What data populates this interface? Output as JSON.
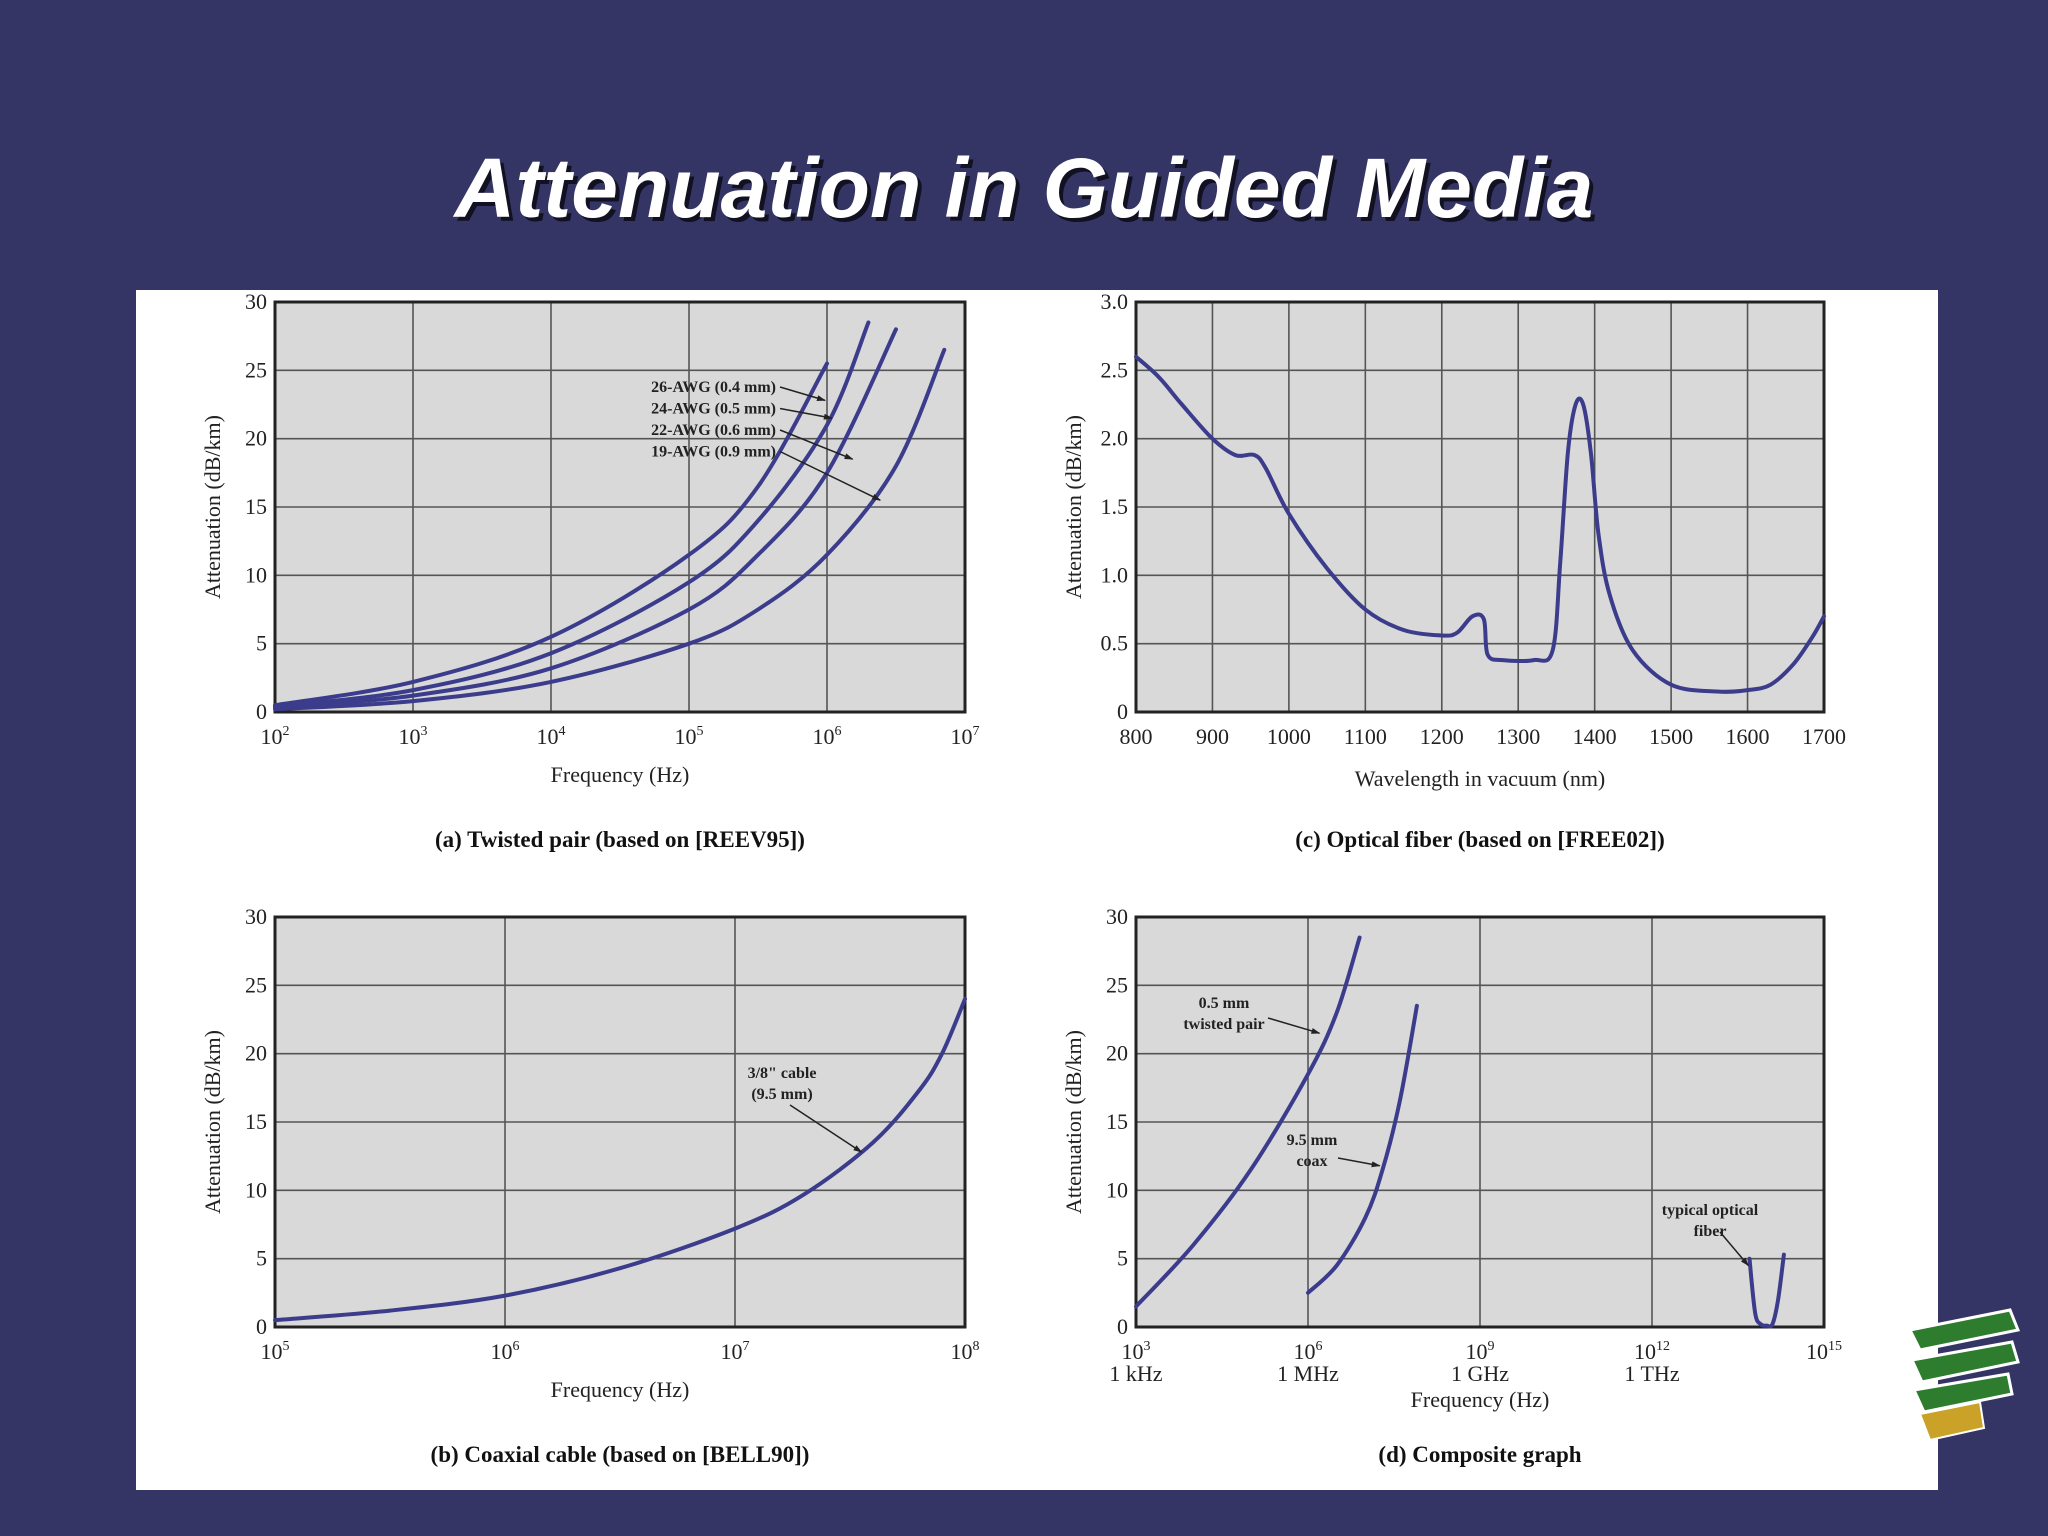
{
  "slide": {
    "title": "Attenuation in Guided Media"
  },
  "colors": {
    "background": "#353565",
    "curve": "#3c3c8c",
    "plot_bg": "#d9d9d9",
    "grid": "#555555"
  },
  "chart_data": [
    {
      "id": "a",
      "type": "line",
      "caption": "(a) Twisted pair (based on [REEV95])",
      "xlabel": "Frequency (Hz)",
      "ylabel": "Attenuation (dB/km)",
      "xscale": "log",
      "xlim": [
        2,
        7
      ],
      "ylim": [
        0,
        30
      ],
      "xticks": [
        {
          "base": "10",
          "exp": "2"
        },
        {
          "base": "10",
          "exp": "3"
        },
        {
          "base": "10",
          "exp": "4"
        },
        {
          "base": "10",
          "exp": "5"
        },
        {
          "base": "10",
          "exp": "6"
        },
        {
          "base": "10",
          "exp": "7"
        }
      ],
      "yticks": [
        "0",
        "5",
        "10",
        "15",
        "20",
        "25",
        "30"
      ],
      "grid": true,
      "series": [
        {
          "name": "26-AWG (0.4 mm)",
          "x": [
            2,
            3,
            4,
            5,
            5.5,
            6
          ],
          "y": [
            0.5,
            2.2,
            5.5,
            11.5,
            16.5,
            25.5
          ]
        },
        {
          "name": "24-AWG (0.5 mm)",
          "x": [
            2,
            3,
            4,
            5,
            5.5,
            6,
            6.3
          ],
          "y": [
            0.4,
            1.6,
            4.3,
            9.5,
            14,
            21,
            28.5
          ]
        },
        {
          "name": "22-AWG (0.6 mm)",
          "x": [
            2,
            3,
            4,
            5,
            5.5,
            6,
            6.5
          ],
          "y": [
            0.3,
            1.2,
            3.2,
            7.5,
            11.5,
            17.5,
            28
          ]
        },
        {
          "name": "19-AWG (0.9 mm)",
          "x": [
            2,
            3,
            4,
            5,
            5.5,
            6,
            6.5,
            6.85
          ],
          "y": [
            0.2,
            0.8,
            2.2,
            5.0,
            7.5,
            11.5,
            18,
            26.5
          ]
        }
      ]
    },
    {
      "id": "c",
      "type": "line",
      "caption": "(c) Optical fiber (based on [FREE02])",
      "xlabel": "Wavelength in vacuum (nm)",
      "ylabel": "Attenuation (dB/km)",
      "xscale": "linear",
      "xlim": [
        800,
        1700
      ],
      "ylim": [
        0,
        3.0
      ],
      "xticks": [
        "800",
        "900",
        "1000",
        "1100",
        "1200",
        "1300",
        "1400",
        "1500",
        "1600",
        "1700"
      ],
      "yticks": [
        "0",
        "0.5",
        "1.0",
        "1.5",
        "2.0",
        "2.5",
        "3.0"
      ],
      "grid": true,
      "series": [
        {
          "x": [
            800,
            830,
            860,
            900,
            930,
            955,
            970,
            1000,
            1050,
            1100,
            1150,
            1200,
            1220,
            1240,
            1255,
            1260,
            1280,
            1320,
            1345,
            1355,
            1365,
            1375,
            1385,
            1395,
            1405,
            1420,
            1450,
            1500,
            1560,
            1600,
            1630,
            1660,
            1685,
            1700
          ],
          "y": [
            2.6,
            2.45,
            2.25,
            2.0,
            1.88,
            1.88,
            1.78,
            1.45,
            1.05,
            0.75,
            0.6,
            0.56,
            0.58,
            0.7,
            0.68,
            0.42,
            0.38,
            0.38,
            0.45,
            1.1,
            1.9,
            2.25,
            2.25,
            1.9,
            1.3,
            0.85,
            0.45,
            0.2,
            0.15,
            0.16,
            0.2,
            0.35,
            0.55,
            0.7
          ]
        }
      ]
    },
    {
      "id": "b",
      "type": "line",
      "caption": "(b) Coaxial cable (based on [BELL90])",
      "xlabel": "Frequency (Hz)",
      "ylabel": "Attenuation (dB/km)",
      "xscale": "log",
      "xlim": [
        5,
        8
      ],
      "ylim": [
        0,
        30
      ],
      "xticks": [
        {
          "base": "10",
          "exp": "5"
        },
        {
          "base": "10",
          "exp": "6"
        },
        {
          "base": "10",
          "exp": "7"
        },
        {
          "base": "10",
          "exp": "8"
        }
      ],
      "yticks": [
        "0",
        "5",
        "10",
        "15",
        "20",
        "25",
        "30"
      ],
      "grid": true,
      "series": [
        {
          "name": "3/8\" cable (9.5 mm)",
          "x": [
            5,
            5.5,
            6,
            6.5,
            7,
            7.3,
            7.6,
            7.8,
            7.9,
            8.0
          ],
          "y": [
            0.5,
            1.2,
            2.3,
            4.3,
            7.2,
            9.7,
            13.5,
            17.3,
            20,
            24
          ]
        }
      ]
    },
    {
      "id": "d",
      "type": "line",
      "caption": "(d) Composite graph",
      "xlabel": "Frequency (Hz)",
      "ylabel": "Attenuation (dB/km)",
      "xscale": "log",
      "xlim": [
        3,
        15
      ],
      "ylim": [
        0,
        30
      ],
      "xticks": [
        {
          "base": "10",
          "exp": "3",
          "label": "1 kHz"
        },
        {
          "base": "10",
          "exp": "6",
          "label": "1 MHz"
        },
        {
          "base": "10",
          "exp": "9",
          "label": "1 GHz"
        },
        {
          "base": "10",
          "exp": "12",
          "label": "1 THz"
        },
        {
          "base": "10",
          "exp": "15",
          "label": ""
        }
      ],
      "yticks": [
        "0",
        "5",
        "10",
        "15",
        "20",
        "25",
        "30"
      ],
      "grid": true,
      "series": [
        {
          "name": "0.5 mm twisted pair",
          "x": [
            3,
            4,
            5,
            6,
            6.5,
            6.9
          ],
          "y": [
            1.5,
            6,
            11.5,
            18.5,
            23,
            28.5
          ]
        },
        {
          "name": "9.5 mm coax",
          "x": [
            6,
            6.5,
            7,
            7.3,
            7.6,
            7.9
          ],
          "y": [
            2.5,
            4.5,
            8,
            11.5,
            16.5,
            23.5
          ]
        },
        {
          "name": "typical optical fiber",
          "x": [
            13.7,
            13.8,
            13.9,
            14.0,
            14.1,
            14.2,
            14.3
          ],
          "y": [
            5,
            1,
            0.2,
            0.1,
            0.2,
            2,
            5.3
          ]
        }
      ]
    }
  ],
  "annotations": {
    "a": [
      "26-AWG (0.4 mm)",
      "24-AWG (0.5 mm)",
      "22-AWG (0.6 mm)",
      "19-AWG (0.9 mm)"
    ],
    "b": [
      "3/8\" cable",
      "(9.5 mm)"
    ],
    "d_tp": [
      "0.5 mm",
      "twisted pair"
    ],
    "d_coax": [
      "9.5 mm",
      "coax"
    ],
    "d_fiber": [
      "typical optical",
      "fiber"
    ]
  }
}
